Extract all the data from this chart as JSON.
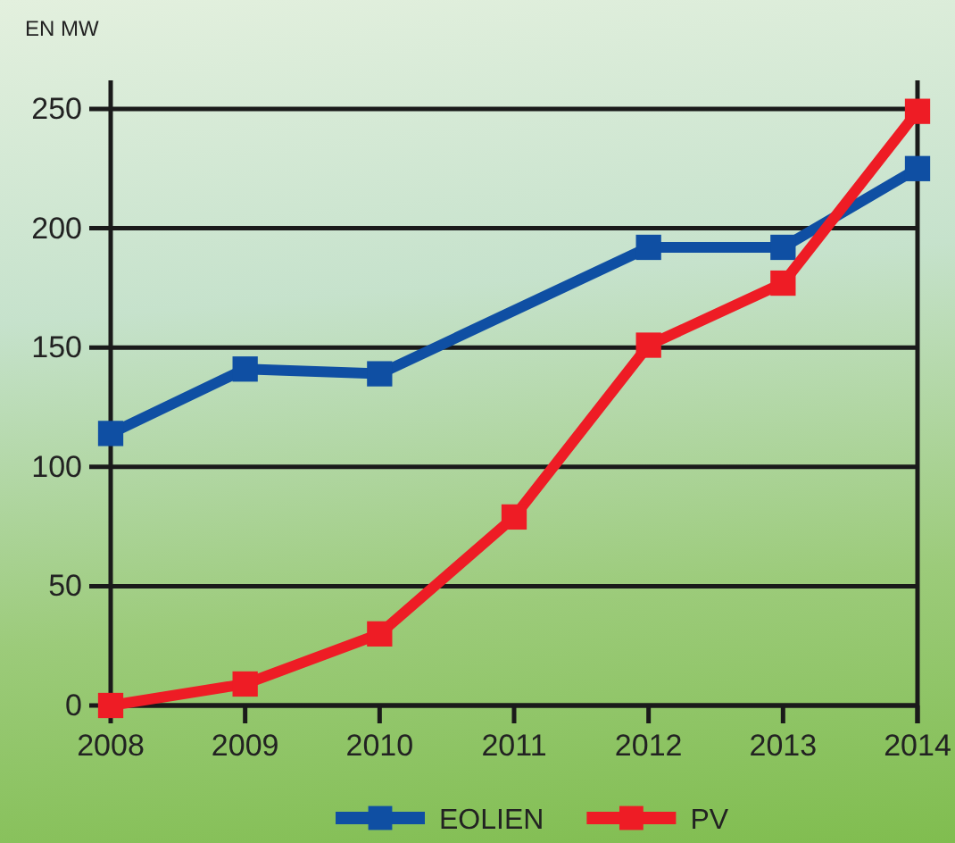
{
  "chart_data": {
    "type": "line",
    "ylabel": "EN MW",
    "xlim": [
      2008,
      2014
    ],
    "xticks": [
      2008,
      2009,
      2010,
      2011,
      2012,
      2013,
      2014
    ],
    "ylim": [
      0,
      262
    ],
    "yticks": [
      0,
      50,
      100,
      150,
      200,
      250
    ],
    "grid": "y",
    "legend": "bottom",
    "marker": "square",
    "line_style": "solid",
    "series": [
      {
        "name": "EOLIEN",
        "color": "#0f4fa3",
        "x": [
          2008,
          2009,
          2010,
          2012,
          2013,
          2014
        ],
        "values": [
          114,
          141,
          139,
          192,
          192,
          225
        ]
      },
      {
        "name": "PV",
        "color": "#ee1c25",
        "x": [
          2008,
          2009,
          2010,
          2011,
          2012,
          2013,
          2014
        ],
        "values": [
          0,
          9,
          30,
          79,
          151,
          177,
          249
        ]
      }
    ]
  }
}
